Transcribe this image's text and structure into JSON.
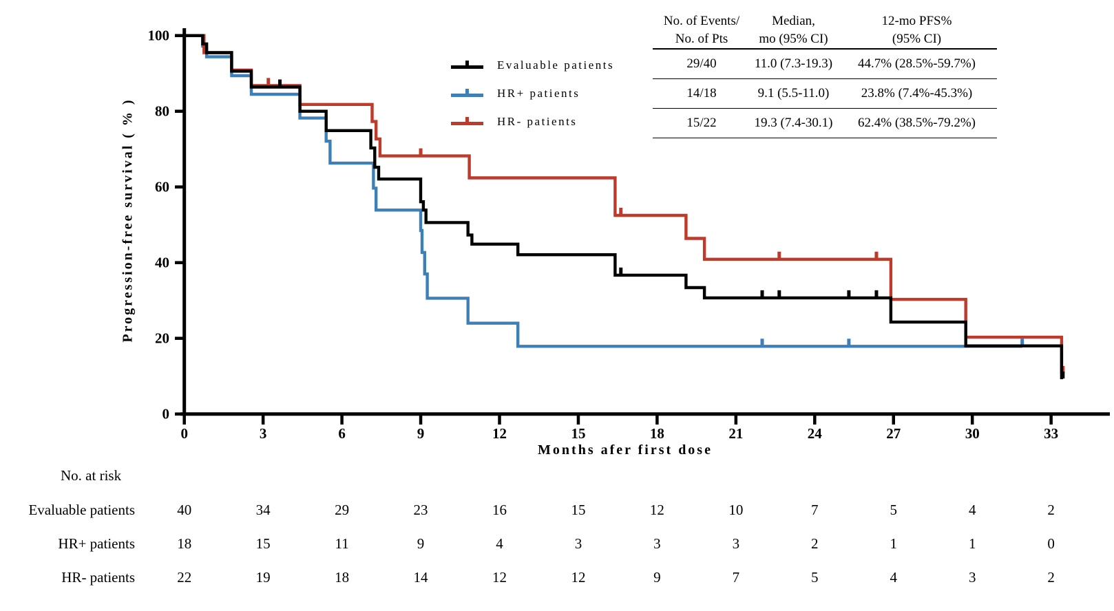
{
  "legend": [
    {
      "label": "Evaluable patients",
      "color": "#000000"
    },
    {
      "label": "HR+ patients",
      "color": "#3D80B8"
    },
    {
      "label": "HR- patients",
      "color": "#BE3A2B"
    }
  ],
  "stats_table": {
    "headers": [
      [
        "No. of Events/",
        "No. of Pts"
      ],
      [
        "Median,",
        "mo (95% CI)"
      ],
      [
        "12-mo PFS%",
        "(95% CI)"
      ]
    ],
    "rows": [
      {
        "events": "29/40",
        "median": "11.0 (7.3-19.3)",
        "pfs12": "44.7% (28.5%-59.7%)"
      },
      {
        "events": "14/18",
        "median": "9.1 (5.5-11.0)",
        "pfs12": "23.8% (7.4%-45.3%)"
      },
      {
        "events": "15/22",
        "median": "19.3 (7.4-30.1)",
        "pfs12": "62.4% (38.5%-79.2%)"
      }
    ]
  },
  "risk_table": {
    "title": "No. at risk",
    "months": [
      0,
      3,
      6,
      9,
      12,
      15,
      18,
      21,
      24,
      27,
      30,
      33
    ],
    "rows": [
      {
        "label": "Evaluable patients",
        "values": [
          40,
          34,
          29,
          23,
          16,
          15,
          12,
          10,
          7,
          5,
          4,
          2
        ]
      },
      {
        "label": "HR+ patients",
        "values": [
          18,
          15,
          11,
          9,
          4,
          3,
          3,
          3,
          2,
          1,
          1,
          0
        ]
      },
      {
        "label": "HR- patients",
        "values": [
          22,
          19,
          18,
          14,
          12,
          12,
          9,
          7,
          5,
          4,
          3,
          2
        ]
      }
    ]
  },
  "chart_data": {
    "type": "line",
    "subtype": "kaplan-meier-step",
    "title": "",
    "xlabel": "Months afer first dose",
    "ylabel": "Progression-free survival ( % )",
    "xlim": [
      0,
      34.5
    ],
    "ylim": [
      0,
      100
    ],
    "x_ticks": [
      0,
      3,
      6,
      9,
      12,
      15,
      18,
      21,
      24,
      27,
      30,
      33
    ],
    "y_ticks": [
      0,
      20,
      40,
      60,
      80,
      100
    ],
    "grid": false,
    "legend_position": "upper-left-inside",
    "series": [
      {
        "name": "Evaluable patients",
        "color": "#000000",
        "n": 40,
        "events": 29,
        "median_months": 11.0,
        "pfs_12mo_pct": 44.7,
        "points": [
          [
            0,
            100
          ],
          [
            0.7,
            100
          ],
          [
            0.7,
            97.8
          ],
          [
            0.85,
            97.8
          ],
          [
            0.85,
            95.5
          ],
          [
            1.8,
            95.5
          ],
          [
            1.8,
            90.6
          ],
          [
            2.55,
            90.6
          ],
          [
            2.55,
            86.4
          ],
          [
            4.4,
            86.4
          ],
          [
            4.4,
            80
          ],
          [
            5.4,
            80
          ],
          [
            5.4,
            74.9
          ],
          [
            7.1,
            74.9
          ],
          [
            7.1,
            70.3
          ],
          [
            7.25,
            70.3
          ],
          [
            7.25,
            65.2
          ],
          [
            7.4,
            65.2
          ],
          [
            7.4,
            62.1
          ],
          [
            9,
            62.1
          ],
          [
            9,
            56.1
          ],
          [
            9.1,
            56.1
          ],
          [
            9.1,
            53.9
          ],
          [
            9.2,
            53.9
          ],
          [
            9.2,
            50.6
          ],
          [
            10.8,
            50.6
          ],
          [
            10.8,
            47.3
          ],
          [
            10.95,
            47.3
          ],
          [
            10.95,
            44.9
          ],
          [
            12.7,
            44.9
          ],
          [
            12.7,
            42.1
          ],
          [
            16.4,
            42.1
          ],
          [
            16.4,
            36.7
          ],
          [
            19.1,
            36.7
          ],
          [
            19.1,
            33.4
          ],
          [
            19.8,
            33.4
          ],
          [
            19.8,
            30.7
          ],
          [
            26.9,
            30.7
          ],
          [
            26.9,
            24.3
          ],
          [
            29.75,
            24.3
          ],
          [
            29.75,
            18
          ],
          [
            33.4,
            18
          ],
          [
            33.4,
            9.2
          ]
        ],
        "censors": [
          [
            3.64,
            86.4
          ],
          [
            16.62,
            36.7
          ],
          [
            22,
            30.7
          ],
          [
            22.65,
            30.7
          ],
          [
            25.3,
            30.7
          ],
          [
            26.35,
            30.7
          ],
          [
            33.45,
            9.2
          ]
        ]
      },
      {
        "name": "HR+ patients",
        "color": "#3D80B8",
        "n": 18,
        "events": 14,
        "median_months": 9.1,
        "pfs_12mo_pct": 23.8,
        "points": [
          [
            0,
            100
          ],
          [
            0.7,
            100
          ],
          [
            0.7,
            97.2
          ],
          [
            0.85,
            97.2
          ],
          [
            0.85,
            94.4
          ],
          [
            1.8,
            94.4
          ],
          [
            1.8,
            89.4
          ],
          [
            2.55,
            89.4
          ],
          [
            2.55,
            84.5
          ],
          [
            4.4,
            84.5
          ],
          [
            4.4,
            78.2
          ],
          [
            5.4,
            78.2
          ],
          [
            5.4,
            72.1
          ],
          [
            5.55,
            72.1
          ],
          [
            5.55,
            66.3
          ],
          [
            7.2,
            66.3
          ],
          [
            7.2,
            59.7
          ],
          [
            7.3,
            59.7
          ],
          [
            7.3,
            53.9
          ],
          [
            9,
            53.9
          ],
          [
            9,
            48.5
          ],
          [
            9.05,
            48.5
          ],
          [
            9.05,
            42.7
          ],
          [
            9.15,
            42.7
          ],
          [
            9.15,
            37
          ],
          [
            9.25,
            37
          ],
          [
            9.25,
            30.6
          ],
          [
            10.8,
            30.6
          ],
          [
            10.8,
            24
          ],
          [
            12.7,
            24
          ],
          [
            12.7,
            17.9
          ],
          [
            31.9,
            17.9
          ]
        ],
        "censors": [
          [
            22,
            17.9
          ],
          [
            25.3,
            17.9
          ],
          [
            31.9,
            17.9
          ]
        ]
      },
      {
        "name": "HR- patients",
        "color": "#BE3A2B",
        "n": 22,
        "events": 15,
        "median_months": 19.3,
        "pfs_12mo_pct": 62.4,
        "points": [
          [
            0,
            100
          ],
          [
            0.75,
            100
          ],
          [
            0.75,
            95.5
          ],
          [
            1.8,
            95.5
          ],
          [
            1.8,
            90.9
          ],
          [
            2.55,
            90.9
          ],
          [
            2.55,
            86.8
          ],
          [
            4.4,
            86.8
          ],
          [
            4.4,
            81.8
          ],
          [
            7.15,
            81.8
          ],
          [
            7.15,
            77.3
          ],
          [
            7.3,
            77.3
          ],
          [
            7.3,
            72.7
          ],
          [
            7.45,
            72.7
          ],
          [
            7.45,
            68.2
          ],
          [
            10.85,
            68.2
          ],
          [
            10.85,
            62.4
          ],
          [
            16.4,
            62.4
          ],
          [
            16.4,
            52.5
          ],
          [
            19.1,
            52.5
          ],
          [
            19.1,
            46.4
          ],
          [
            19.8,
            46.4
          ],
          [
            19.8,
            40.9
          ],
          [
            26.9,
            40.9
          ],
          [
            26.9,
            30.3
          ],
          [
            29.75,
            30.3
          ],
          [
            29.75,
            20.3
          ],
          [
            33.4,
            20.3
          ],
          [
            33.4,
            10.7
          ]
        ],
        "censors": [
          [
            3.2,
            86.8
          ],
          [
            9,
            68.2
          ],
          [
            16.62,
            52.5
          ],
          [
            22.65,
            40.9
          ],
          [
            26.35,
            40.9
          ],
          [
            33.45,
            10.7
          ]
        ]
      }
    ]
  }
}
